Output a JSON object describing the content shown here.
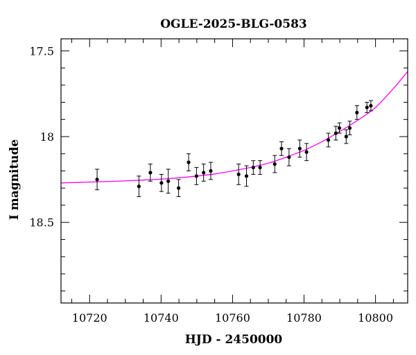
{
  "chart_data": {
    "type": "scatter",
    "title": "OGLE-2025-BLG-0583",
    "xlabel": "HJD - 2450000",
    "ylabel": "I magnitude",
    "xlim": [
      10712,
      10809
    ],
    "ylim": [
      18.97,
      17.43
    ],
    "y_inverted": true,
    "grid": false,
    "x_ticks": [
      10720,
      10740,
      10760,
      10780,
      10800
    ],
    "x_tick_labels": [
      "10720",
      "10740",
      "10760",
      "10780",
      "10800"
    ],
    "x_minor_step": 5,
    "y_ticks": [
      17.5,
      18,
      18.5
    ],
    "y_tick_labels": [
      "17.5",
      "18",
      "18.5"
    ],
    "y_minor_step": 0.1,
    "colors": {
      "points": "#000000",
      "model": "#ff00ff",
      "axes": "#000000"
    },
    "series": [
      {
        "kind": "points_with_errorbars",
        "x": [
          10722.1,
          10733.8,
          10737.0,
          10740.1,
          10742.0,
          10744.9,
          10747.7,
          10749.9,
          10751.9,
          10753.9,
          10761.7,
          10763.9,
          10765.8,
          10767.7,
          10771.8,
          10773.7,
          10775.8,
          10778.8,
          10780.7,
          10786.8,
          10788.9,
          10789.9,
          10791.8,
          10792.8,
          10794.8,
          10797.6,
          10798.7
        ],
        "y": [
          18.25,
          18.29,
          18.21,
          18.27,
          18.26,
          18.3,
          18.15,
          18.23,
          18.21,
          18.2,
          18.22,
          18.23,
          18.18,
          18.18,
          18.16,
          18.07,
          18.12,
          18.07,
          18.09,
          18.02,
          17.98,
          17.95,
          18.0,
          17.95,
          17.86,
          17.83,
          17.82
        ],
        "yerr": [
          0.06,
          0.06,
          0.05,
          0.05,
          0.07,
          0.05,
          0.05,
          0.05,
          0.05,
          0.05,
          0.06,
          0.06,
          0.04,
          0.04,
          0.05,
          0.04,
          0.05,
          0.05,
          0.05,
          0.04,
          0.04,
          0.03,
          0.04,
          0.04,
          0.04,
          0.03,
          0.03
        ]
      },
      {
        "kind": "model_curve",
        "x": [
          10712,
          10720,
          10730,
          10740,
          10745,
          10750,
          10755,
          10760,
          10765,
          10770,
          10775,
          10780,
          10785,
          10790,
          10795,
          10800,
          10805,
          10809
        ],
        "y": [
          18.27,
          18.265,
          18.258,
          18.248,
          18.24,
          18.23,
          18.218,
          18.2,
          18.18,
          18.155,
          18.12,
          18.08,
          18.03,
          17.97,
          17.905,
          17.83,
          17.72,
          17.62
        ]
      }
    ]
  }
}
